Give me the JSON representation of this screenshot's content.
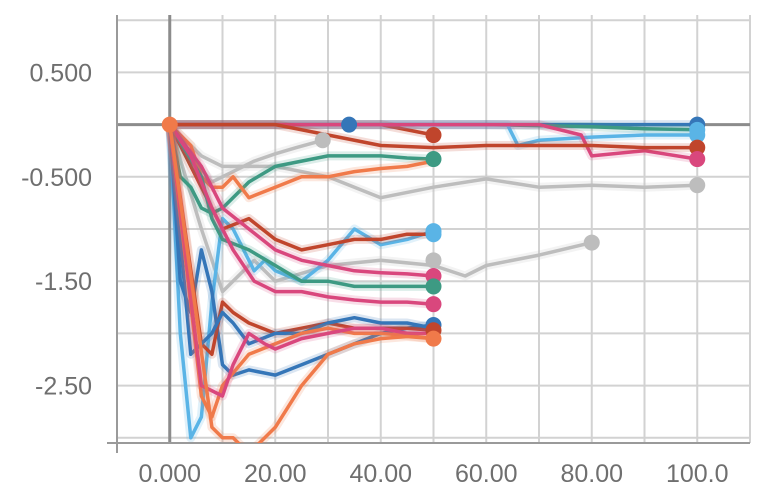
{
  "chart_data": {
    "type": "line",
    "title": "",
    "xlabel": "",
    "ylabel": "",
    "xlim": [
      -10,
      110
    ],
    "ylim": [
      -3.05,
      1.05
    ],
    "grid": true,
    "legend": "none",
    "x_ticks": [
      0,
      20,
      40,
      60,
      80,
      100
    ],
    "x_tick_labels": [
      "0.000",
      "20.00",
      "40.00",
      "60.00",
      "80.00",
      "100.0"
    ],
    "y_ticks": [
      0.5,
      -0.5,
      -1.5,
      -2.5
    ],
    "y_tick_labels": [
      "0.500",
      "-0.500",
      "-1.50",
      "-2.50"
    ],
    "colors": {
      "blue": "#3576b8",
      "green": "#3d9a83",
      "orange": "#f07a4a",
      "red": "#c0452c",
      "lightblue": "#5ab4e6",
      "pink": "#d9477d",
      "gray": "#bdbdbd"
    },
    "series": [
      {
        "color": "blue",
        "x": [
          0,
          2,
          4,
          6,
          10,
          20,
          34,
          40,
          50,
          60,
          80,
          100
        ],
        "y": [
          0,
          0,
          0,
          0,
          0,
          0,
          0,
          0,
          0,
          0,
          0,
          0
        ]
      },
      {
        "color": "green",
        "x": [
          0,
          10,
          20,
          34,
          40,
          50,
          60,
          80,
          90,
          100
        ],
        "y": [
          0,
          0,
          0,
          0,
          0,
          0,
          0,
          -0.02,
          -0.04,
          -0.05
        ]
      },
      {
        "color": "red",
        "x": [
          0,
          10,
          20,
          40,
          50
        ],
        "y": [
          0,
          0,
          0,
          0,
          -0.1
        ]
      },
      {
        "color": "lightblue",
        "x": [
          0,
          10,
          40,
          50,
          60,
          64,
          66,
          70,
          80,
          90,
          100
        ],
        "y": [
          0,
          0,
          0,
          0,
          0,
          0,
          -0.2,
          -0.15,
          -0.12,
          -0.1,
          -0.1
        ]
      },
      {
        "color": "pink",
        "x": [
          0,
          10,
          30,
          50,
          60,
          70,
          78,
          80,
          90,
          100
        ],
        "y": [
          0,
          0,
          0,
          0,
          0,
          0,
          -0.1,
          -0.3,
          -0.25,
          -0.33
        ]
      },
      {
        "color": "red",
        "x": [
          0,
          10,
          20,
          30,
          40,
          50,
          60,
          70,
          80,
          90,
          100
        ],
        "y": [
          0,
          0,
          0,
          -0.1,
          -0.2,
          -0.22,
          -0.2,
          -0.2,
          -0.2,
          -0.22,
          -0.22
        ]
      },
      {
        "color": "gray",
        "x": [
          0,
          6,
          10,
          20,
          30,
          40,
          50,
          60,
          70,
          80,
          90,
          100
        ],
        "y": [
          0,
          -0.3,
          -0.4,
          -0.4,
          -0.5,
          -0.7,
          -0.6,
          -0.52,
          -0.6,
          -0.58,
          -0.6,
          -0.58
        ]
      },
      {
        "color": "gray",
        "x": [
          0,
          4,
          8,
          12,
          16,
          20,
          24,
          29
        ],
        "y": [
          0,
          -0.3,
          -0.55,
          -0.45,
          -0.35,
          -0.28,
          -0.22,
          -0.15
        ]
      },
      {
        "color": "gray",
        "x": [
          0,
          6,
          10,
          16,
          20,
          30,
          40,
          50,
          56,
          60,
          70,
          80
        ],
        "y": [
          0,
          -1.0,
          -1.6,
          -1.3,
          -1.5,
          -1.35,
          -1.3,
          -1.35,
          -1.45,
          -1.35,
          -1.25,
          -1.13
        ]
      },
      {
        "color": "green",
        "x": [
          0,
          2,
          4,
          6,
          8,
          10,
          15,
          20,
          25,
          30,
          35,
          40,
          45,
          50
        ],
        "y": [
          0,
          -0.5,
          -0.6,
          -0.8,
          -0.85,
          -0.8,
          -0.55,
          -0.4,
          -0.35,
          -0.3,
          -0.3,
          -0.3,
          -0.32,
          -0.33
        ]
      },
      {
        "color": "orange",
        "x": [
          0,
          4,
          6,
          8,
          10,
          12,
          15,
          20,
          25,
          30,
          35,
          40,
          45,
          50
        ],
        "y": [
          0,
          -0.2,
          -0.5,
          -0.6,
          -0.6,
          -0.5,
          -0.7,
          -0.6,
          -0.5,
          -0.5,
          -0.45,
          -0.42,
          -0.4,
          -0.35
        ]
      },
      {
        "color": "lightblue",
        "x": [
          0,
          2,
          4,
          6,
          8,
          10,
          12,
          14,
          16,
          18,
          20,
          25,
          30,
          35,
          40,
          45,
          50
        ],
        "y": [
          0,
          -2.0,
          -3.0,
          -2.8,
          -1.7,
          -0.9,
          -1.0,
          -1.2,
          -1.4,
          -1.3,
          -1.4,
          -1.5,
          -1.3,
          -1.0,
          -1.15,
          -1.1,
          -1.02
        ]
      },
      {
        "color": "red",
        "x": [
          0,
          10,
          15,
          20,
          25,
          30,
          35,
          40,
          45,
          50
        ],
        "y": [
          0,
          -1.0,
          -0.9,
          -1.1,
          -1.2,
          -1.15,
          -1.1,
          -1.1,
          -1.05,
          -1.05
        ]
      },
      {
        "color": "pink",
        "x": [
          0,
          6,
          10,
          15,
          20,
          25,
          30,
          35,
          40,
          45,
          50
        ],
        "y": [
          0,
          -0.4,
          -0.8,
          -1.0,
          -1.2,
          -1.3,
          -1.35,
          -1.4,
          -1.42,
          -1.43,
          -1.45
        ]
      },
      {
        "color": "green",
        "x": [
          0,
          6,
          8,
          10,
          15,
          20,
          25,
          30,
          35,
          40,
          45,
          50
        ],
        "y": [
          0,
          -0.5,
          -0.9,
          -1.1,
          -1.2,
          -1.35,
          -1.5,
          -1.5,
          -1.55,
          -1.55,
          -1.55,
          -1.55
        ]
      },
      {
        "color": "pink",
        "x": [
          0,
          4,
          8,
          12,
          16,
          20,
          25,
          30,
          35,
          40,
          45,
          50
        ],
        "y": [
          0,
          -0.3,
          -0.8,
          -1.2,
          -1.5,
          -1.6,
          -1.6,
          -1.65,
          -1.68,
          -1.7,
          -1.7,
          -1.72
        ]
      },
      {
        "color": "blue",
        "x": [
          0,
          2,
          4,
          6,
          8,
          10,
          12,
          15,
          20,
          25,
          30,
          35,
          40,
          45,
          50
        ],
        "y": [
          0,
          -1.5,
          -1.8,
          -1.2,
          -1.6,
          -2.3,
          -2.4,
          -2.35,
          -2.4,
          -2.3,
          -2.2,
          -2.1,
          -2.0,
          -1.95,
          -1.92
        ]
      },
      {
        "color": "red",
        "x": [
          0,
          6,
          8,
          10,
          12,
          15,
          20,
          25,
          30,
          35,
          40,
          45,
          50
        ],
        "y": [
          0,
          -2.1,
          -2.2,
          -1.7,
          -1.8,
          -1.9,
          -2.0,
          -1.95,
          -1.9,
          -1.95,
          -1.95,
          -1.95,
          -1.97
        ]
      },
      {
        "color": "blue",
        "x": [
          0,
          4,
          8,
          10,
          12,
          15,
          20,
          25,
          30,
          35,
          40,
          45,
          50
        ],
        "y": [
          0,
          -2.2,
          -2.0,
          -1.8,
          -1.9,
          -2.1,
          -2.0,
          -2.0,
          -1.9,
          -1.85,
          -1.9,
          -1.9,
          -1.95
        ]
      },
      {
        "color": "orange",
        "x": [
          0,
          6,
          8,
          10,
          15,
          20,
          25,
          30,
          35,
          40,
          45,
          50
        ],
        "y": [
          0,
          -2.6,
          -2.8,
          -2.5,
          -2.2,
          -2.1,
          -2.0,
          -1.95,
          -2.0,
          -2.0,
          -2.02,
          -2.05
        ]
      },
      {
        "color": "pink",
        "x": [
          0,
          6,
          10,
          12,
          15,
          18,
          20,
          25,
          30,
          35,
          40,
          45,
          50
        ],
        "y": [
          0,
          -2.5,
          -2.6,
          -2.3,
          -2.0,
          -2.1,
          -2.15,
          -2.05,
          -2.0,
          -1.95,
          -1.95,
          -2.0,
          -2.0
        ]
      },
      {
        "color": "orange",
        "x": [
          0,
          8,
          10,
          12,
          14,
          16,
          20,
          25,
          30,
          35,
          40,
          45,
          50
        ],
        "y": [
          0,
          -2.9,
          -3.0,
          -3.0,
          -3.1,
          -3.1,
          -2.9,
          -2.5,
          -2.2,
          -2.1,
          -2.05,
          -2.03,
          -2.05
        ]
      }
    ],
    "markers": [
      {
        "x": 0,
        "y": 0,
        "color": "orange"
      },
      {
        "x": 34,
        "y": 0,
        "color": "blue"
      },
      {
        "x": 29,
        "y": -0.15,
        "color": "gray"
      },
      {
        "x": 50,
        "y": -0.1,
        "color": "red"
      },
      {
        "x": 50,
        "y": -0.33,
        "color": "green"
      },
      {
        "x": 50,
        "y": -1.02,
        "color": "lightblue"
      },
      {
        "x": 50,
        "y": -1.05,
        "color": "lightblue"
      },
      {
        "x": 50,
        "y": -1.3,
        "color": "gray"
      },
      {
        "x": 50,
        "y": -1.45,
        "color": "pink"
      },
      {
        "x": 50,
        "y": -1.55,
        "color": "green"
      },
      {
        "x": 50,
        "y": -1.72,
        "color": "pink"
      },
      {
        "x": 50,
        "y": -1.92,
        "color": "blue"
      },
      {
        "x": 50,
        "y": -1.97,
        "color": "red"
      },
      {
        "x": 50,
        "y": -2.05,
        "color": "orange"
      },
      {
        "x": 80,
        "y": -1.13,
        "color": "gray"
      },
      {
        "x": 100,
        "y": 0,
        "color": "blue"
      },
      {
        "x": 100,
        "y": -0.05,
        "color": "lightblue"
      },
      {
        "x": 100,
        "y": -0.1,
        "color": "lightblue"
      },
      {
        "x": 100,
        "y": -0.22,
        "color": "red"
      },
      {
        "x": 100,
        "y": -0.33,
        "color": "pink"
      },
      {
        "x": 100,
        "y": -0.58,
        "color": "gray"
      }
    ]
  }
}
